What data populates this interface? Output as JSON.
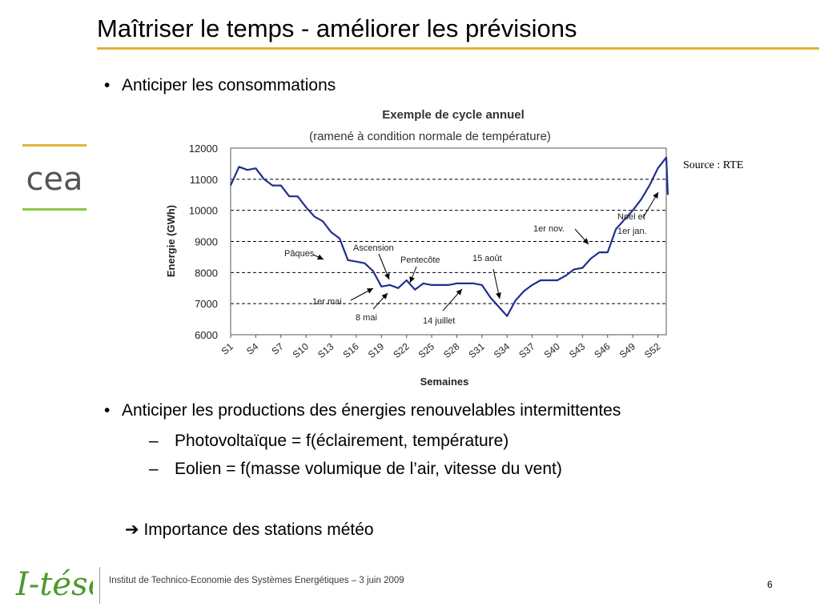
{
  "slide": {
    "title": "Maîtriser le temps - améliorer les prévisions",
    "bullet1": "Anticiper les consommations",
    "bullet2": "Anticiper les productions des énergies renouvelables intermittentes",
    "sub1": "Photovoltaïque = f(éclairement, température)",
    "sub2": "Eolien = f(masse volumique de l’air, vitesse du vent)",
    "arrow_glyph": "➔",
    "conclusion": "Importance des stations météo",
    "source": "Source : RTE",
    "footer": "Institut de Technico-Economie des Systèmes Energétiques  –  3 juin 2009",
    "page_number": "6",
    "bullet_glyph": "•",
    "dash_glyph": "–",
    "accent_color": "#e0b43a",
    "cea_logo_text": "cea",
    "itese_logo_text": "I-tésé",
    "logo_green": "#8dc63f"
  },
  "chart_data": {
    "type": "line",
    "title": "Exemple de cycle annuel",
    "subtitle": "(ramené à condition normale de température)",
    "xlabel": "Semaines",
    "ylabel": "Energie (GWh)",
    "ylim": [
      6000,
      12000
    ],
    "yticks": [
      6000,
      7000,
      8000,
      9000,
      10000,
      11000,
      12000
    ],
    "grid": "dashed horizontal",
    "line_color": "#1f2f8f",
    "xtick_labels": [
      "S1",
      "S4",
      "S7",
      "S10",
      "S13",
      "S16",
      "S19",
      "S22",
      "S25",
      "S28",
      "S31",
      "S34",
      "S37",
      "S40",
      "S43",
      "S46",
      "S49",
      "S52"
    ],
    "x": [
      1,
      2,
      3,
      4,
      5,
      6,
      7,
      8,
      9,
      10,
      11,
      12,
      13,
      14,
      15,
      16,
      17,
      18,
      19,
      20,
      21,
      22,
      23,
      24,
      25,
      26,
      27,
      28,
      29,
      30,
      31,
      32,
      33,
      34,
      35,
      36,
      37,
      38,
      39,
      40,
      41,
      42,
      43,
      44,
      45,
      46,
      47,
      48,
      49,
      50,
      51,
      52,
      53
    ],
    "values": [
      10800,
      11400,
      11300,
      11350,
      11000,
      10800,
      10800,
      10450,
      10450,
      10100,
      9800,
      9650,
      9300,
      9100,
      8400,
      8350,
      8300,
      8050,
      7550,
      7600,
      7500,
      7750,
      7450,
      7650,
      7600,
      7600,
      7600,
      7650,
      7650,
      7650,
      7600,
      7200,
      6900,
      6600,
      7100,
      7400,
      7600,
      7750,
      7750,
      7750,
      7900,
      8100,
      8150,
      8450,
      8650,
      8650,
      9400,
      9700,
      10000,
      10350,
      10800,
      11350,
      11700
    ],
    "last_value": 10500,
    "annotations": [
      {
        "label": "Pâques",
        "week": 16
      },
      {
        "label": "Ascension",
        "week": 21
      },
      {
        "label": "Pentecôte",
        "week": 24
      },
      {
        "label": "1er mai",
        "week": 19
      },
      {
        "label": "8 mai",
        "week": 20
      },
      {
        "label": "14 juillet",
        "week": 28
      },
      {
        "label": "15 août",
        "week": 34
      },
      {
        "label": "1er nov.",
        "week": 45
      },
      {
        "label": "Noel et",
        "week": 53
      },
      {
        "label": "1er jan.",
        "week": 53
      }
    ]
  }
}
